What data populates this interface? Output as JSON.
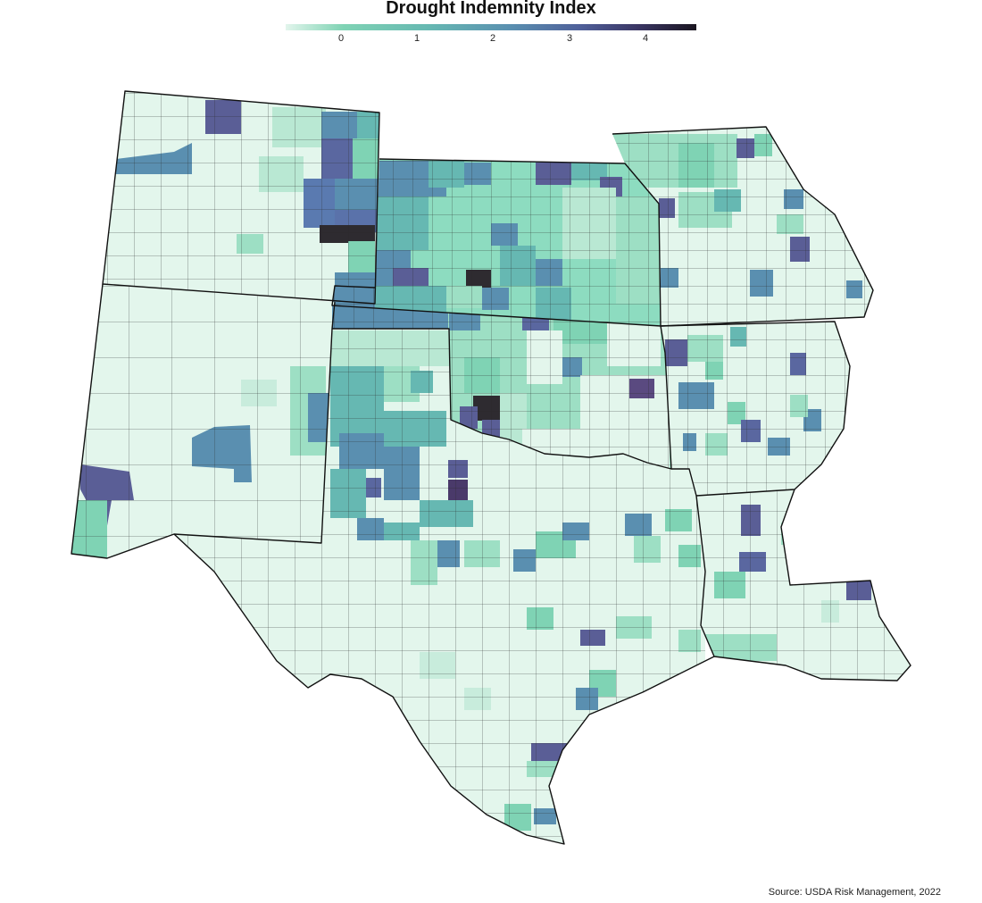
{
  "title": "Drought Indemnity Index",
  "legend": {
    "ticks": [
      "0",
      "1",
      "2",
      "3",
      "4"
    ]
  },
  "source": "Source: USDA Risk Management, 2022",
  "colors": {
    "low": "#e2f5ec",
    "mid_low": "#7fd3b4",
    "mid": "#5a8fb0",
    "high": "#4f5f99",
    "max": "#1a1620"
  }
}
